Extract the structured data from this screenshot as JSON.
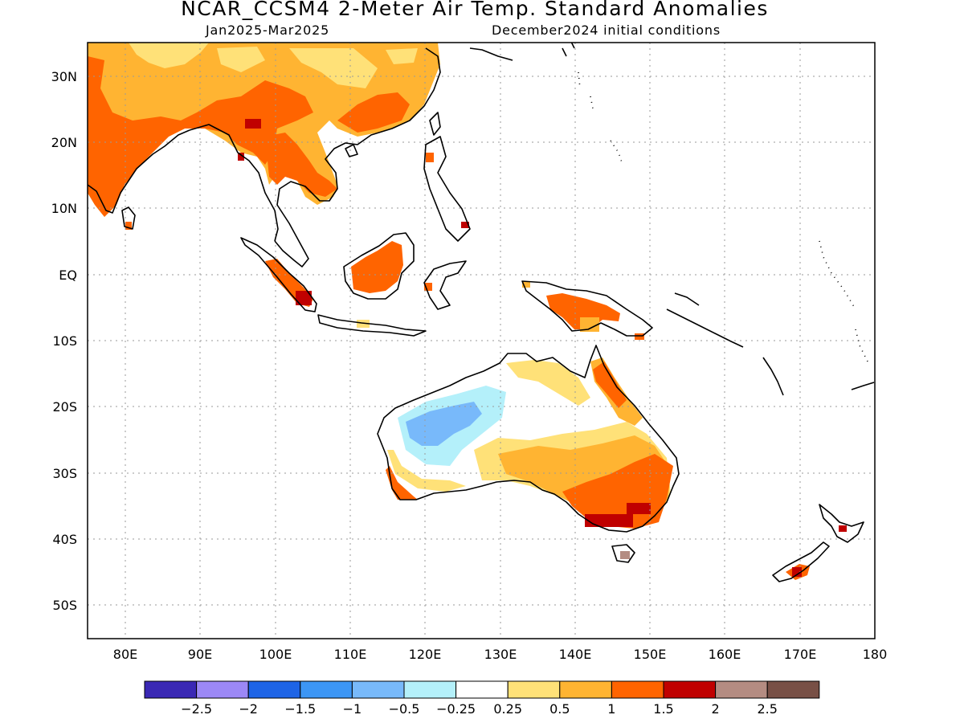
{
  "header": {
    "title": "NCAR_CCSM4 2-Meter Air Temp. Standard Anomalies",
    "period": "Jan2025-Mar2025",
    "init": "December2024 initial conditions"
  },
  "map": {
    "lon_range": [
      75,
      180
    ],
    "lat_range": [
      -55,
      35
    ],
    "lat_ticks": [
      {
        "value": 30,
        "label": "30N"
      },
      {
        "value": 20,
        "label": "20N"
      },
      {
        "value": 10,
        "label": "10N"
      },
      {
        "value": 0,
        "label": "EQ"
      },
      {
        "value": -10,
        "label": "10S"
      },
      {
        "value": -20,
        "label": "20S"
      },
      {
        "value": -30,
        "label": "30S"
      },
      {
        "value": -40,
        "label": "40S"
      },
      {
        "value": -50,
        "label": "50S"
      }
    ],
    "lon_ticks": [
      {
        "value": 80,
        "label": "80E"
      },
      {
        "value": 90,
        "label": "90E"
      },
      {
        "value": 100,
        "label": "100E"
      },
      {
        "value": 110,
        "label": "110E"
      },
      {
        "value": 120,
        "label": "120E"
      },
      {
        "value": 130,
        "label": "130E"
      },
      {
        "value": 140,
        "label": "140E"
      },
      {
        "value": 150,
        "label": "150E"
      },
      {
        "value": 160,
        "label": "160E"
      },
      {
        "value": 170,
        "label": "170E"
      },
      {
        "value": 180,
        "label": "180"
      }
    ],
    "grid": "dotted"
  },
  "colorbar": {
    "colors": [
      "#3a28b4",
      "#9c88f6",
      "#1e64e6",
      "#3c96f5",
      "#78b9fa",
      "#b4f0fa",
      "#ffffff",
      "#ffe178",
      "#ffb432",
      "#ff6400",
      "#c00000",
      "#b48c82",
      "#785046"
    ],
    "labels": [
      "-2.5",
      "-2",
      "-1.5",
      "-1",
      "-0.5",
      "-0.25",
      "0.25",
      "0.5",
      "1",
      "1.5",
      "2",
      "2.5"
    ]
  },
  "palette": {
    "light_yellow": "#ffe178",
    "light_orange": "#ffb432",
    "orange": "#ff6400",
    "dark_red": "#c00000",
    "light_blue": "#b4f0fa",
    "mid_blue": "#78b9fa",
    "brown": "#b48c82",
    "coast": "#000000"
  }
}
